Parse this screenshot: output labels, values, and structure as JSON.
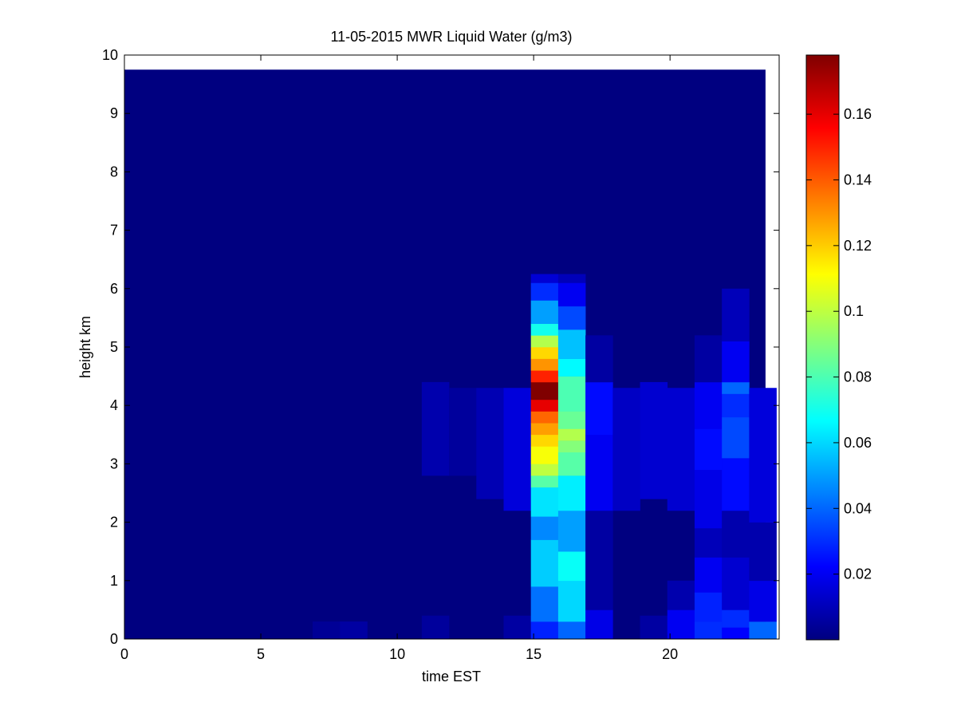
{
  "chart_data": {
    "type": "heatmap",
    "title": "11-05-2015 MWR Liquid Water (g/m3)",
    "xlabel": "time EST",
    "ylabel": "height km",
    "xlim": [
      0,
      24
    ],
    "ylim": [
      0,
      10
    ],
    "x_ticks": [
      0,
      5,
      10,
      15,
      20
    ],
    "y_ticks": [
      0,
      1,
      2,
      3,
      4,
      5,
      6,
      7,
      8,
      9,
      10
    ],
    "colormap": "jet",
    "colorbar": {
      "min": 0,
      "max": 0.178,
      "ticks": [
        0.02,
        0.04,
        0.06,
        0.08,
        0.1,
        0.12,
        0.14,
        0.16
      ],
      "tick_labels": [
        "0.02",
        "0.04",
        "0.06",
        "0.08",
        "0.1",
        "0.12",
        "0.14",
        "0.16"
      ]
    },
    "grid": false,
    "time_bins": [
      0,
      23.5
    ],
    "height_bins": [
      0,
      9.75
    ],
    "columns": [
      {
        "t": 6.9,
        "profile": [
          [
            0.0,
            0.3,
            0.004
          ]
        ]
      },
      {
        "t": 7.9,
        "profile": [
          [
            0.0,
            0.3,
            0.006
          ]
        ]
      },
      {
        "t": 10.9,
        "profile": [
          [
            0.0,
            0.4,
            0.005
          ],
          [
            2.8,
            4.4,
            0.008
          ]
        ]
      },
      {
        "t": 11.9,
        "profile": [
          [
            2.8,
            4.3,
            0.005
          ]
        ]
      },
      {
        "t": 12.9,
        "profile": [
          [
            2.4,
            4.3,
            0.009
          ]
        ]
      },
      {
        "t": 13.9,
        "profile": [
          [
            0.0,
            0.4,
            0.006
          ],
          [
            2.2,
            4.3,
            0.016
          ]
        ]
      },
      {
        "t": 14.9,
        "profile": [
          [
            0.0,
            0.3,
            0.028
          ],
          [
            0.3,
            0.9,
            0.042
          ],
          [
            0.9,
            1.7,
            0.058
          ],
          [
            1.7,
            2.1,
            0.046
          ],
          [
            2.1,
            2.6,
            0.062
          ],
          [
            2.6,
            2.8,
            0.082
          ],
          [
            2.8,
            3.0,
            0.1
          ],
          [
            3.0,
            3.3,
            0.11
          ],
          [
            3.3,
            3.5,
            0.118
          ],
          [
            3.5,
            3.7,
            0.128
          ],
          [
            3.7,
            3.9,
            0.138
          ],
          [
            3.9,
            4.1,
            0.16
          ],
          [
            4.1,
            4.4,
            0.178
          ],
          [
            4.4,
            4.6,
            0.15
          ],
          [
            4.6,
            4.8,
            0.13
          ],
          [
            4.8,
            5.0,
            0.118
          ],
          [
            5.0,
            5.2,
            0.098
          ],
          [
            5.2,
            5.4,
            0.07
          ],
          [
            5.4,
            5.8,
            0.05
          ],
          [
            5.8,
            6.1,
            0.03
          ],
          [
            6.1,
            6.25,
            0.015
          ]
        ]
      },
      {
        "t": 15.9,
        "profile": [
          [
            0.0,
            0.3,
            0.04
          ],
          [
            0.3,
            1.0,
            0.06
          ],
          [
            1.0,
            1.5,
            0.068
          ],
          [
            1.5,
            2.2,
            0.05
          ],
          [
            2.2,
            2.8,
            0.064
          ],
          [
            2.8,
            3.2,
            0.082
          ],
          [
            3.2,
            3.4,
            0.09
          ],
          [
            3.4,
            3.6,
            0.098
          ],
          [
            3.6,
            3.9,
            0.085
          ],
          [
            3.9,
            4.5,
            0.08
          ],
          [
            4.5,
            4.8,
            0.066
          ],
          [
            4.8,
            5.3,
            0.056
          ],
          [
            5.3,
            5.7,
            0.035
          ],
          [
            5.7,
            6.1,
            0.02
          ],
          [
            6.1,
            6.25,
            0.01
          ]
        ]
      },
      {
        "t": 16.9,
        "profile": [
          [
            0.0,
            0.5,
            0.018
          ],
          [
            0.5,
            2.2,
            0.006
          ],
          [
            2.2,
            3.5,
            0.02
          ],
          [
            3.5,
            4.4,
            0.024
          ],
          [
            4.4,
            5.2,
            0.006
          ]
        ]
      },
      {
        "t": 17.9,
        "profile": [
          [
            2.2,
            4.3,
            0.012
          ]
        ]
      },
      {
        "t": 18.9,
        "profile": [
          [
            0.0,
            0.4,
            0.006
          ],
          [
            2.4,
            4.4,
            0.014
          ]
        ]
      },
      {
        "t": 19.9,
        "profile": [
          [
            0.0,
            0.5,
            0.02
          ],
          [
            0.5,
            1.0,
            0.008
          ],
          [
            2.2,
            4.3,
            0.014
          ]
        ]
      },
      {
        "t": 20.9,
        "profile": [
          [
            0.0,
            0.3,
            0.03
          ],
          [
            0.3,
            0.8,
            0.028
          ],
          [
            0.8,
            1.4,
            0.02
          ],
          [
            1.4,
            1.9,
            0.01
          ],
          [
            1.9,
            2.9,
            0.018
          ],
          [
            2.9,
            3.6,
            0.024
          ],
          [
            3.6,
            4.4,
            0.02
          ],
          [
            4.4,
            5.2,
            0.006
          ]
        ]
      },
      {
        "t": 21.9,
        "profile": [
          [
            0.0,
            0.2,
            0.022
          ],
          [
            0.2,
            0.5,
            0.03
          ],
          [
            0.5,
            1.4,
            0.014
          ],
          [
            1.4,
            2.2,
            0.008
          ],
          [
            2.2,
            3.1,
            0.024
          ],
          [
            3.1,
            3.8,
            0.035
          ],
          [
            3.8,
            4.2,
            0.03
          ],
          [
            4.2,
            4.4,
            0.04
          ],
          [
            4.4,
            5.1,
            0.02
          ],
          [
            5.1,
            6.0,
            0.01
          ]
        ]
      },
      {
        "t": 22.9,
        "profile": [
          [
            0.0,
            0.3,
            0.04
          ],
          [
            0.3,
            1.0,
            0.018
          ],
          [
            1.0,
            2.0,
            0.008
          ],
          [
            2.0,
            4.3,
            0.016
          ]
        ]
      }
    ]
  },
  "colors": {
    "background": "#ffffff",
    "axes": "#000000"
  }
}
